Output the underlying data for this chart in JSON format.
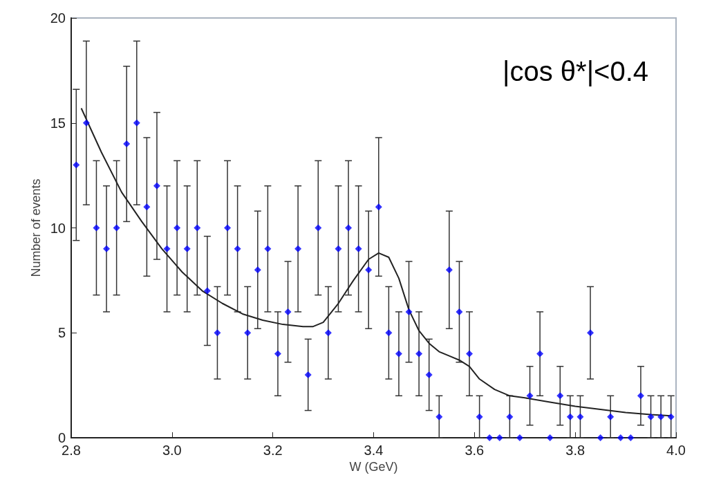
{
  "chart_data": {
    "type": "scatter",
    "xlabel": "W (GeV)",
    "ylabel": "Number of events",
    "annotations": [
      "|cos θ*|<0.4"
    ],
    "xlim": [
      2.8,
      4.0
    ],
    "xticks": [
      2.8,
      {
        "value": 3,
        "label": "3.0"
      },
      3.2,
      3.4,
      3.6,
      3.8,
      {
        "value": 4,
        "label": "4.0"
      }
    ],
    "ylim": [
      0,
      20
    ],
    "yticks": [
      0,
      5,
      10,
      15,
      20
    ],
    "grid": false,
    "series": [
      {
        "color": "#0000ff",
        "marker": "diamond",
        "x": [
          2.81,
          2.83,
          2.85,
          2.87,
          2.89,
          2.91,
          2.93,
          2.95,
          2.97,
          2.99,
          3.01,
          3.03,
          3.05,
          3.07,
          3.09,
          3.11,
          3.13,
          3.15,
          3.17,
          3.19,
          3.21,
          3.23,
          3.25,
          3.27,
          3.29,
          3.31,
          3.33,
          3.35,
          3.37,
          3.39,
          3.41,
          3.43,
          3.45,
          3.47,
          3.49,
          3.51,
          3.53,
          3.55,
          3.57,
          3.59,
          3.61,
          3.63,
          3.65,
          3.67,
          3.69,
          3.71,
          3.73,
          3.75,
          3.77,
          3.79,
          3.81,
          3.83,
          3.85,
          3.87,
          3.89,
          3.91,
          3.93,
          3.95,
          3.97,
          3.99
        ],
        "values": [
          13,
          15,
          10,
          9,
          10,
          14,
          15,
          11,
          12,
          9,
          10,
          9,
          10,
          7,
          5,
          10,
          9,
          5,
          8,
          9,
          4,
          6,
          9,
          3,
          10,
          5,
          9,
          10,
          9,
          8,
          11,
          5,
          4,
          6,
          4,
          3,
          1,
          8,
          6,
          4,
          1,
          0,
          0,
          1,
          0,
          2,
          4,
          0,
          2,
          1,
          1,
          5,
          0,
          1,
          0,
          0,
          2,
          1,
          1,
          1
        ],
        "errors": [
          [
            9.4,
            16.6
          ],
          [
            11.1,
            18.9
          ],
          [
            6.8,
            13.2
          ],
          [
            6,
            12
          ],
          [
            6.8,
            13.2
          ],
          [
            10.3,
            17.7
          ],
          [
            11.1,
            18.9
          ],
          [
            7.7,
            14.3
          ],
          [
            8.5,
            15.5
          ],
          [
            6,
            12
          ],
          [
            6.8,
            13.2
          ],
          [
            6,
            12
          ],
          [
            6.8,
            13.2
          ],
          [
            4.4,
            9.6
          ],
          [
            2.8,
            7.2
          ],
          [
            6.8,
            13.2
          ],
          [
            6,
            12
          ],
          [
            2.8,
            7.2
          ],
          [
            5.2,
            10.8
          ],
          [
            6,
            12
          ],
          [
            2,
            6
          ],
          [
            3.6,
            8.4
          ],
          [
            6,
            12
          ],
          [
            1.3,
            4.7
          ],
          [
            6.8,
            13.2
          ],
          [
            2.8,
            7.2
          ],
          [
            6,
            12
          ],
          [
            6.8,
            13.2
          ],
          [
            6,
            12
          ],
          [
            5.2,
            10.8
          ],
          [
            7.7,
            14.3
          ],
          [
            2.8,
            7.2
          ],
          [
            2,
            6
          ],
          [
            3.6,
            8.4
          ],
          [
            2,
            6
          ],
          [
            1.3,
            4.7
          ],
          [
            0,
            2
          ],
          [
            5.2,
            10.8
          ],
          [
            3.6,
            8.4
          ],
          [
            2,
            6
          ],
          [
            0,
            2
          ],
          null,
          null,
          [
            0,
            2
          ],
          null,
          [
            0.6,
            3.4
          ],
          [
            2,
            6
          ],
          null,
          [
            0.6,
            3.4
          ],
          [
            0,
            2
          ],
          [
            0,
            2
          ],
          [
            2.8,
            7.2
          ],
          null,
          [
            0,
            2
          ],
          null,
          null,
          [
            0.6,
            3.4
          ],
          [
            0,
            2
          ],
          [
            0,
            2
          ],
          [
            0,
            2
          ]
        ]
      },
      {
        "type": "line",
        "color": "#222222",
        "marker": "none",
        "line_style": "solid",
        "x": [
          2.82,
          2.86,
          2.9,
          2.94,
          2.98,
          3.02,
          3.06,
          3.1,
          3.14,
          3.18,
          3.22,
          3.26,
          3.28,
          3.3,
          3.33,
          3.36,
          3.39,
          3.41,
          3.43,
          3.45,
          3.47,
          3.49,
          3.51,
          3.53,
          3.55,
          3.57,
          3.59,
          3.61,
          3.64,
          3.67,
          3.7,
          3.75,
          3.8,
          3.85,
          3.9,
          3.95,
          3.99
        ],
        "values": [
          15.7,
          13.6,
          11.7,
          10.3,
          9.0,
          7.9,
          7.0,
          6.4,
          5.9,
          5.6,
          5.4,
          5.3,
          5.3,
          5.5,
          6.4,
          7.5,
          8.5,
          8.8,
          8.6,
          7.6,
          6.1,
          5.1,
          4.5,
          4.1,
          3.9,
          3.7,
          3.4,
          2.8,
          2.3,
          2.0,
          1.9,
          1.7,
          1.5,
          1.35,
          1.2,
          1.1,
          1.05
        ]
      }
    ]
  }
}
